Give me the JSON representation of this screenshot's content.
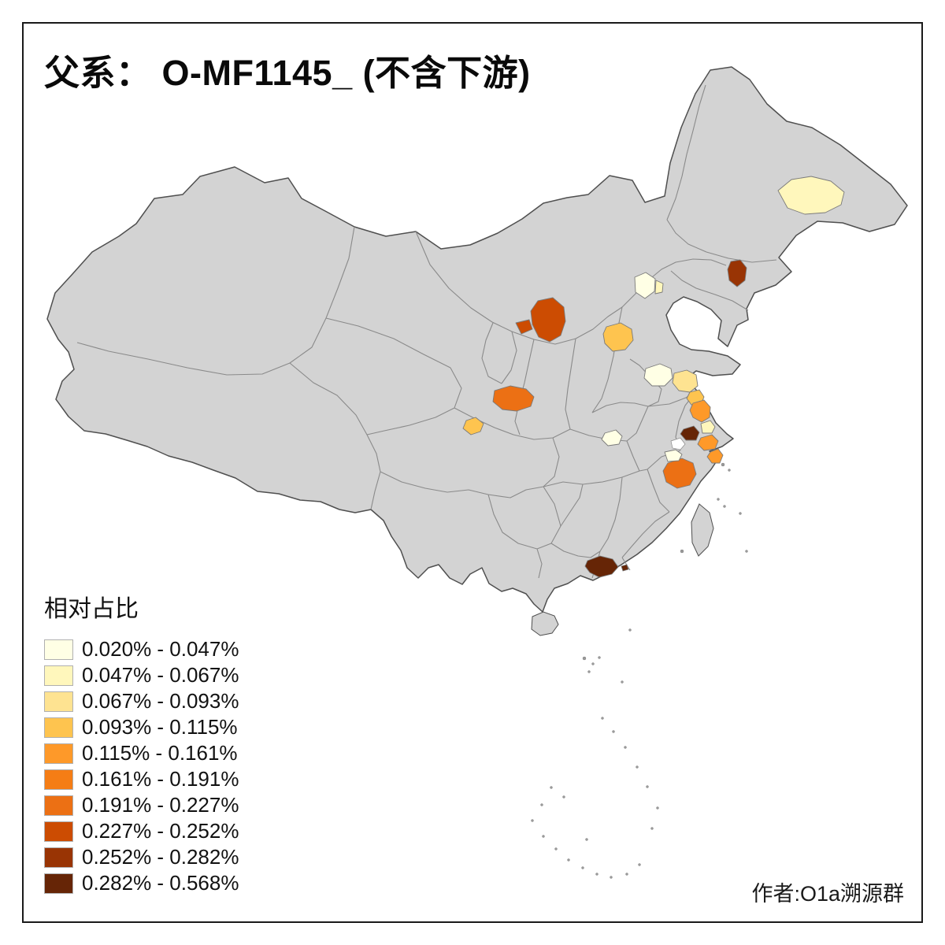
{
  "page": {
    "title": "父系： O-MF1145_ (不含下游)",
    "attribution": "作者:O1a溯源群"
  },
  "legend": {
    "title": "相对占比"
  },
  "map": {
    "colors": {
      "land": "#D3D3D3",
      "outline": "#4F4F4F",
      "province_border": "#8A8A8A",
      "patch_border": "#7A7A7A",
      "frame": "#1A1A1A",
      "background": "#FFFFFF"
    }
  },
  "chart_data": {
    "type": "choropleth",
    "title": "父系： O-MF1145_ (不含下游)",
    "legend_title": "相对占比",
    "value_format": "percent",
    "attribution": "作者:O1a溯源群",
    "bins": [
      {
        "label": "0.020% - 0.047%",
        "color": "#FFFFE5"
      },
      {
        "label": "0.047% - 0.067%",
        "color": "#FFF7BC"
      },
      {
        "label": "0.067% - 0.093%",
        "color": "#FEE391"
      },
      {
        "label": "0.093% - 0.115%",
        "color": "#FEC44F"
      },
      {
        "label": "0.115% - 0.161%",
        "color": "#FE9929"
      },
      {
        "label": "0.161% - 0.191%",
        "color": "#F57D15"
      },
      {
        "label": "0.191% - 0.227%",
        "color": "#EC7014"
      },
      {
        "label": "0.227% - 0.252%",
        "color": "#CC4C02"
      },
      {
        "label": "0.252% - 0.282%",
        "color": "#993404"
      },
      {
        "label": "0.282% - 0.568%",
        "color": "#662506"
      }
    ],
    "regions": [
      {
        "location": "heilongjiang-central",
        "bin": 1
      },
      {
        "location": "beijing",
        "bin": 0
      },
      {
        "location": "beijing-east-small",
        "bin": 1
      },
      {
        "location": "liaoning-south",
        "bin": 8
      },
      {
        "location": "shaanxi-north",
        "bin": 7
      },
      {
        "location": "shaanxi-north-small",
        "bin": 7
      },
      {
        "location": "hebei-south",
        "bin": 3
      },
      {
        "location": "shaanxi-central",
        "bin": 6
      },
      {
        "location": "sichuan-northeast-small",
        "bin": 3
      },
      {
        "location": "jiangsu-north-pale",
        "bin": 0
      },
      {
        "location": "jiangsu-central-yellow",
        "bin": 2
      },
      {
        "location": "jiangsu-central-amber",
        "bin": 3
      },
      {
        "location": "jiangsu-coast-orange",
        "bin": 4
      },
      {
        "location": "jiangsu-south-dark",
        "bin": 9
      },
      {
        "location": "yangtze-delta-pale",
        "bin": 1
      },
      {
        "location": "shanghai-south-orange",
        "bin": 4
      },
      {
        "location": "zhejiang-coast-orange",
        "bin": 4
      },
      {
        "location": "zhejiang-north-orange",
        "bin": 6
      },
      {
        "location": "zhejiang-northwest-pale",
        "bin": 0
      },
      {
        "location": "anhui-central-pale",
        "bin": 0
      },
      {
        "location": "guangdong-east-dark",
        "bin": 9
      },
      {
        "location": "guangdong-east-small-dark",
        "bin": 9
      }
    ]
  }
}
